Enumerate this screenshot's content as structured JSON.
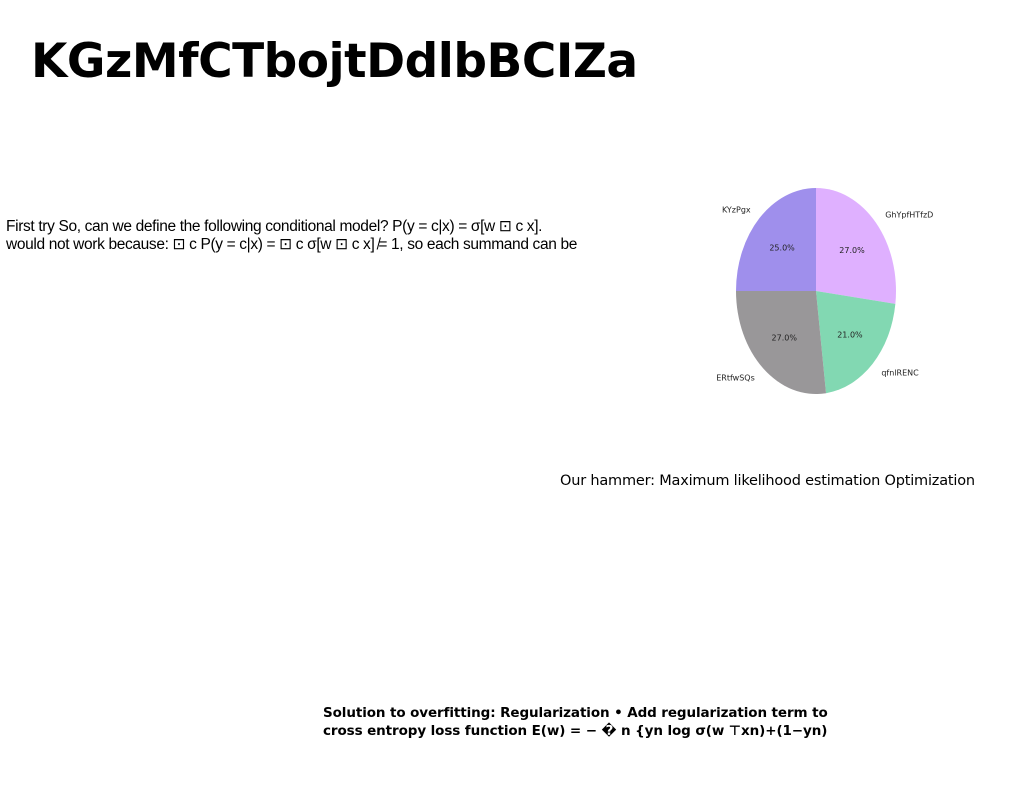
{
  "title": "KGzMfCTbojtDdlbBCIZa",
  "left_paragraph": {
    "line1": "First try So, can we define the following conditional model? P(y = c|x) = σ[w ⊡ c x].",
    "line2": "would not work because: ⊡ c P(y = c|x) = ⊡ c σ[w ⊡ c x] ̸= 1, so each summand can be"
  },
  "caption": "Our hammer: Maximum likelihood estimation Optimization",
  "bottom_paragraph": {
    "line1": "Solution to overfitting: Regularization • Add regularization term to",
    "line2": "cross entropy loss function E(w) = − � n {yn log σ(w ⊤xn)+(1−yn)"
  },
  "chart_data": {
    "type": "pie",
    "slices": [
      {
        "label": "GhYpfHTfzD",
        "value": 27.0,
        "pct_label": "27.0%",
        "color": "#dfb0ff"
      },
      {
        "label": "qfnlRENC",
        "value": 21.0,
        "pct_label": "21.0%",
        "color": "#82d8b2"
      },
      {
        "label": "ERtfwSQs",
        "value": 27.0,
        "pct_label": "27.0%",
        "color": "#999799"
      },
      {
        "label": "KYzPgx",
        "value": 25.0,
        "pct_label": "25.0%",
        "color": "#9f8fec"
      }
    ],
    "start_angle_deg": 90,
    "direction": "clockwise"
  }
}
